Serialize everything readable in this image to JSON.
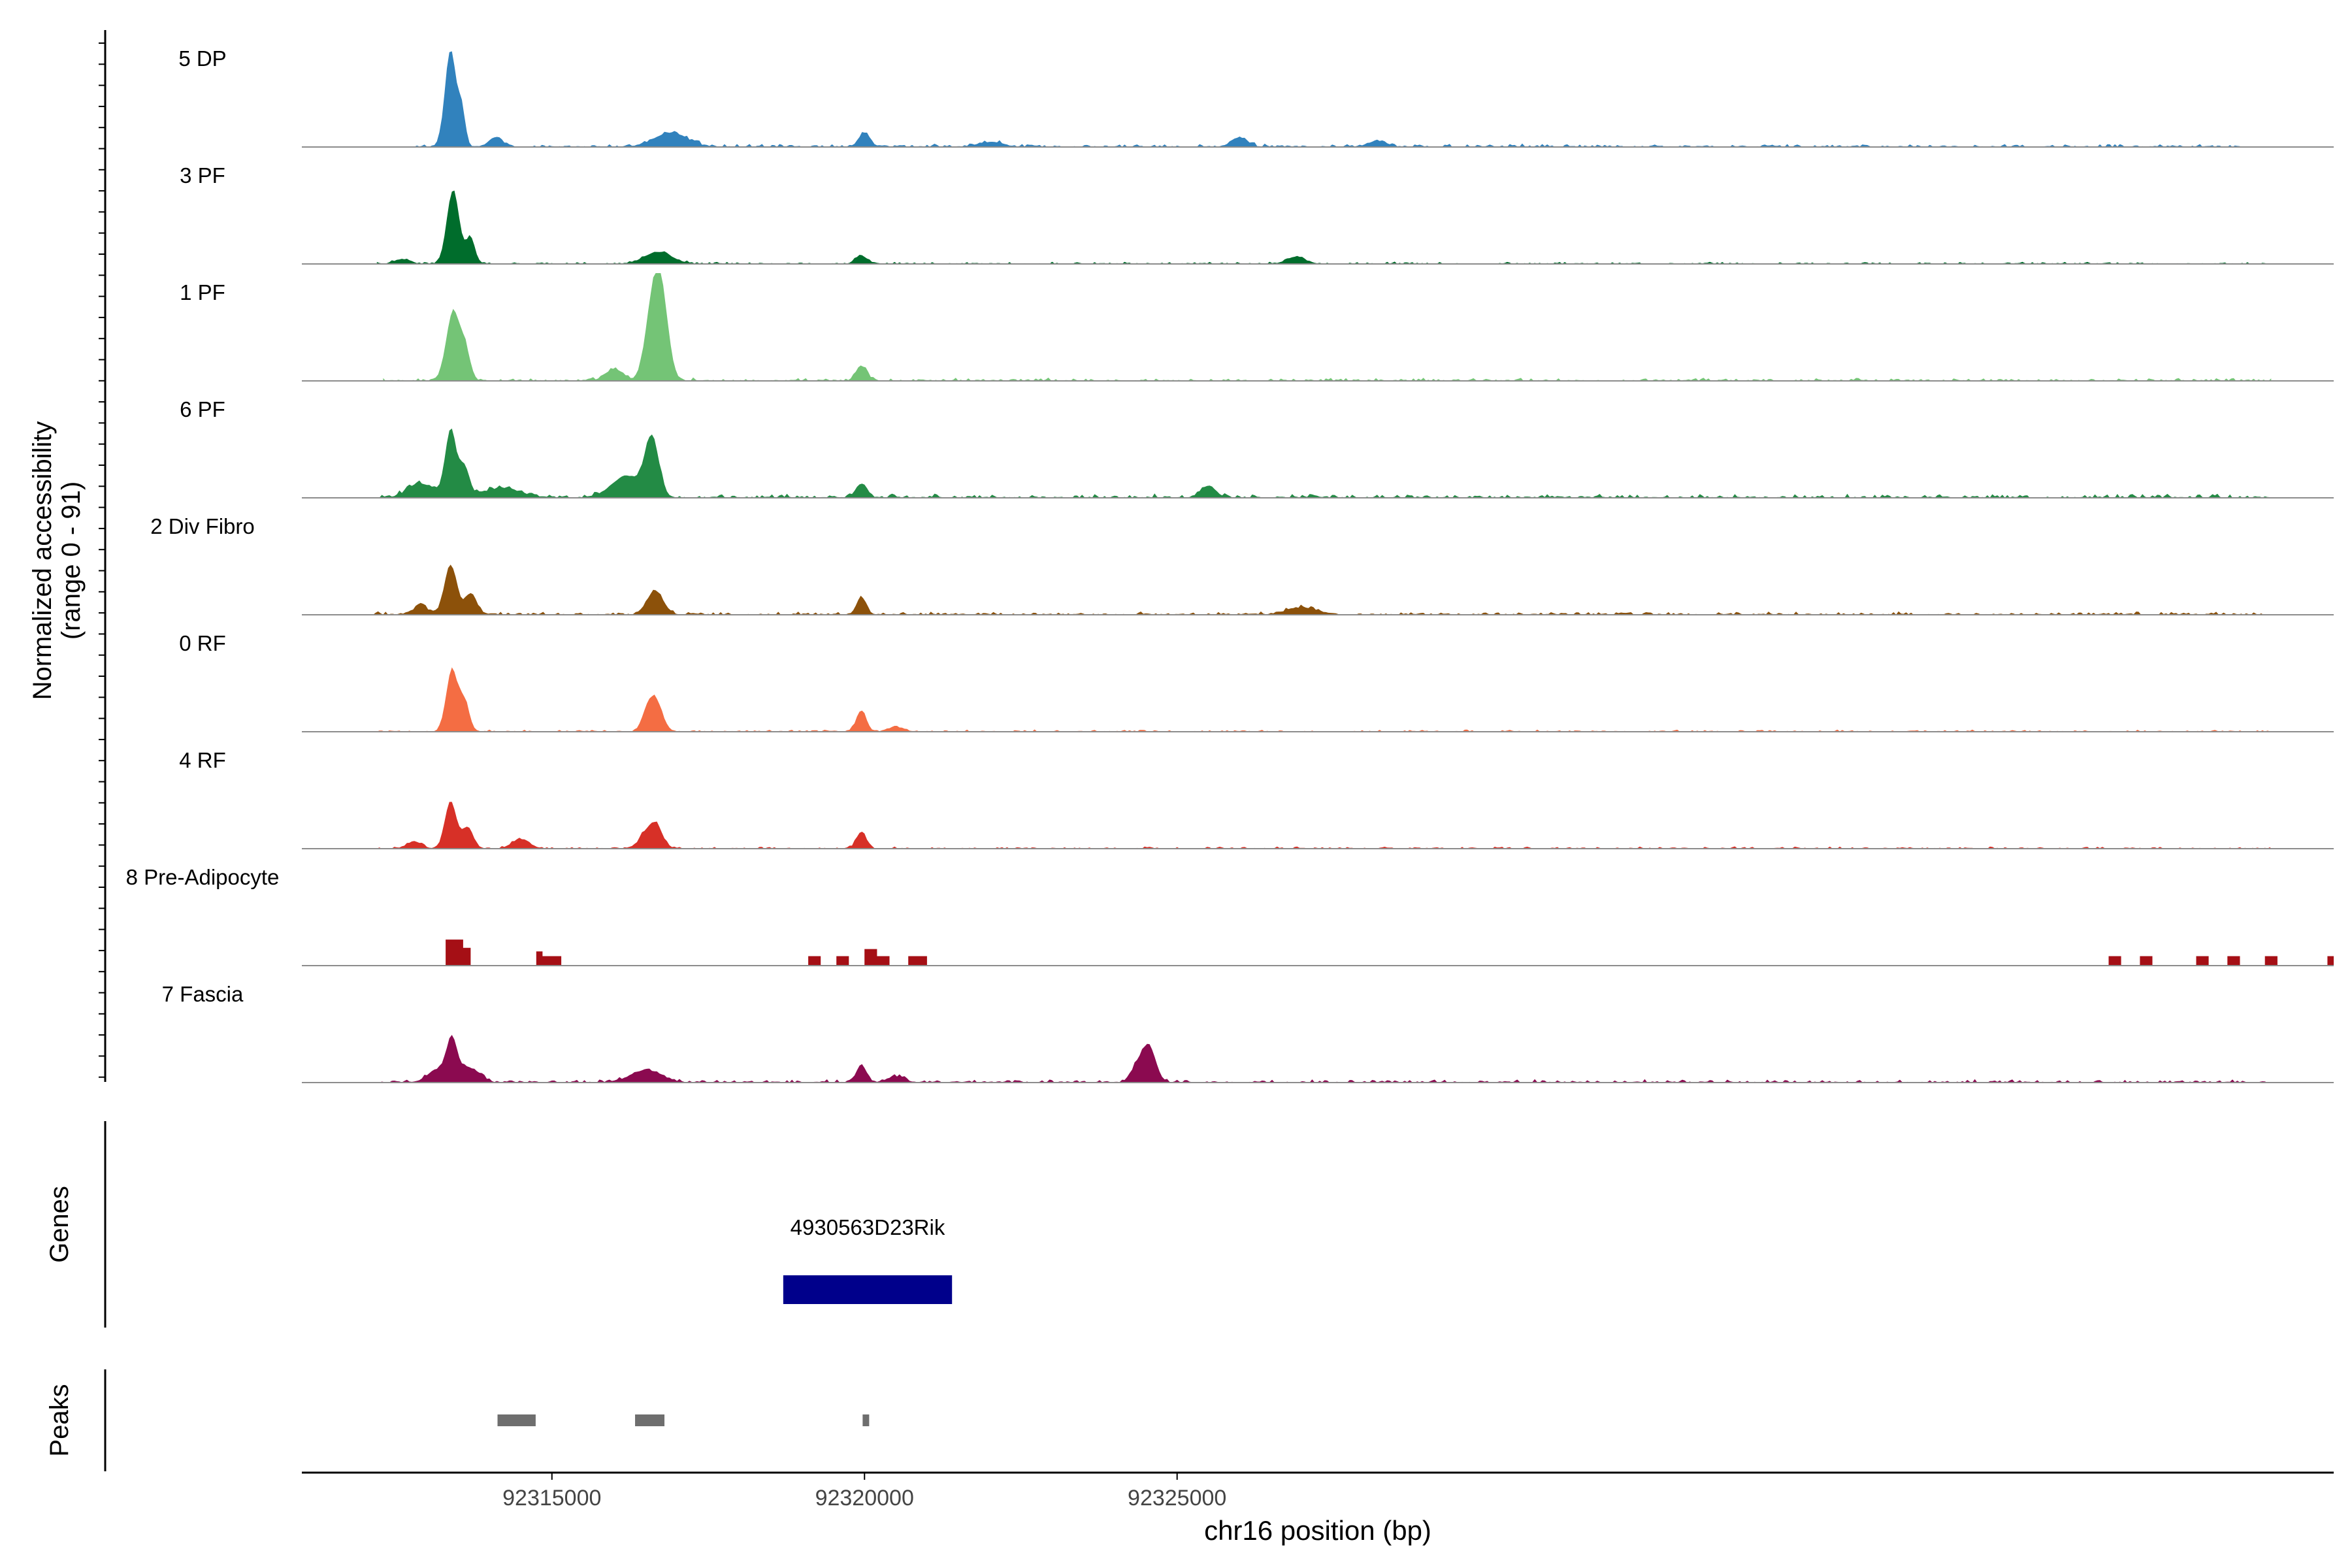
{
  "chart_data": {
    "type": "area",
    "ylabel": "Normalized accessibility",
    "ylabel_range": "(range 0 - 91)",
    "ylim": [
      0,
      91
    ],
    "xlabel": "chr16 position (bp)",
    "xlim": [
      92311000,
      92343500
    ],
    "xticks": [
      {
        "value": 92315000,
        "label": "92315000"
      },
      {
        "value": 92320000,
        "label": "92320000"
      },
      {
        "value": 92325000,
        "label": "92325000"
      }
    ],
    "track_labels": {
      "genes": "Genes",
      "peaks": "Peaks"
    },
    "series": [
      {
        "name": "5 DP",
        "color": "#3182BD",
        "smooth": true,
        "peaks": [
          [
            92313380,
            82,
            90
          ],
          [
            92313560,
            28,
            55
          ],
          [
            92314100,
            8,
            110
          ],
          [
            92316900,
            12,
            260
          ],
          [
            92320000,
            12,
            90
          ],
          [
            92322000,
            4,
            200
          ],
          [
            92326000,
            8,
            130
          ],
          [
            92328200,
            5,
            150
          ]
        ],
        "noise": [
          92312800,
          92342000,
          3
        ]
      },
      {
        "name": "3 PF",
        "color": "#006D2C",
        "smooth": true,
        "peaks": [
          [
            92313420,
            62,
            100
          ],
          [
            92313700,
            22,
            70
          ],
          [
            92312600,
            4,
            120
          ],
          [
            92316700,
            10,
            220
          ],
          [
            92319950,
            7,
            90
          ],
          [
            92326900,
            6,
            150
          ]
        ],
        "noise": [
          92312200,
          92342500,
          2
        ]
      },
      {
        "name": "1 PF",
        "color": "#74C476",
        "smooth": true,
        "peaks": [
          [
            92313420,
            58,
            110
          ],
          [
            92313620,
            22,
            80
          ],
          [
            92316720,
            88,
            120
          ],
          [
            92316550,
            30,
            100
          ],
          [
            92316000,
            10,
            140
          ],
          [
            92319950,
            12,
            90
          ]
        ],
        "noise": [
          92312300,
          92342500,
          3
        ]
      },
      {
        "name": "6 PF",
        "color": "#238B45",
        "smooth": true,
        "peaks": [
          [
            92313380,
            55,
            90
          ],
          [
            92313600,
            25,
            80
          ],
          [
            92312900,
            12,
            200
          ],
          [
            92314200,
            8,
            300
          ],
          [
            92316600,
            48,
            110
          ],
          [
            92316200,
            18,
            250
          ],
          [
            92319950,
            12,
            90
          ],
          [
            92325500,
            10,
            120
          ]
        ],
        "noise": [
          92312200,
          92342500,
          4
        ]
      },
      {
        "name": "2 Div Fibro",
        "color": "#8C510A",
        "smooth": true,
        "peaks": [
          [
            92313380,
            42,
            100
          ],
          [
            92313700,
            18,
            90
          ],
          [
            92312900,
            8,
            110
          ],
          [
            92316650,
            20,
            130
          ],
          [
            92319950,
            14,
            80
          ],
          [
            92327000,
            6,
            250
          ]
        ],
        "noise": [
          92312100,
          92342500,
          3
        ]
      },
      {
        "name": "0 RF",
        "color": "#F46D43",
        "smooth": true,
        "peaks": [
          [
            92313400,
            52,
            90
          ],
          [
            92313600,
            25,
            80
          ],
          [
            92316650,
            28,
            110
          ],
          [
            92316500,
            10,
            80
          ],
          [
            92319950,
            18,
            80
          ],
          [
            92320500,
            4,
            120
          ]
        ],
        "noise": [
          92312200,
          92342500,
          2
        ]
      },
      {
        "name": "4 RF",
        "color": "#D73027",
        "smooth": true,
        "peaks": [
          [
            92313380,
            40,
            90
          ],
          [
            92313650,
            18,
            90
          ],
          [
            92312800,
            6,
            120
          ],
          [
            92314500,
            8,
            140
          ],
          [
            92316650,
            22,
            110
          ],
          [
            92316450,
            9,
            80
          ],
          [
            92319950,
            14,
            80
          ]
        ],
        "noise": [
          92312200,
          92342500,
          2
        ]
      },
      {
        "name": "8 Pre-Adipocyte",
        "color": "#A50F15",
        "smooth": false,
        "blocks": [
          [
            92313300,
            92313580,
            22
          ],
          [
            92313580,
            92313700,
            15
          ],
          [
            92314750,
            92314850,
            12
          ],
          [
            92314850,
            92315150,
            8
          ],
          [
            92319100,
            92319300,
            8
          ],
          [
            92319550,
            92319750,
            8
          ],
          [
            92320000,
            92320200,
            14
          ],
          [
            92320200,
            92320400,
            8
          ],
          [
            92320700,
            92321000,
            8
          ],
          [
            92339900,
            92340100,
            8
          ],
          [
            92340400,
            92340600,
            8
          ],
          [
            92341300,
            92341500,
            8
          ],
          [
            92341800,
            92342000,
            8
          ],
          [
            92342400,
            92342600,
            8
          ],
          [
            92343400,
            92343500,
            8
          ]
        ],
        "noise": [
          0,
          0,
          0
        ]
      },
      {
        "name": "7 Fascia",
        "color": "#8B0A50",
        "smooth": true,
        "peaks": [
          [
            92313400,
            35,
            90
          ],
          [
            92313150,
            10,
            150
          ],
          [
            92313700,
            12,
            150
          ],
          [
            92316500,
            10,
            250
          ],
          [
            92319950,
            15,
            80
          ],
          [
            92320500,
            5,
            140
          ],
          [
            92324550,
            30,
            110
          ],
          [
            92324350,
            12,
            100
          ]
        ],
        "noise": [
          92312200,
          92342500,
          3
        ]
      }
    ],
    "genes": [
      {
        "name": "4930563D23Rik",
        "start": 92318700,
        "end": 92321400,
        "color": "#00008B"
      }
    ],
    "peaks_track": [
      [
        92314130,
        92314740
      ],
      [
        92316330,
        92316800
      ],
      [
        92319970,
        92320020
      ]
    ]
  }
}
